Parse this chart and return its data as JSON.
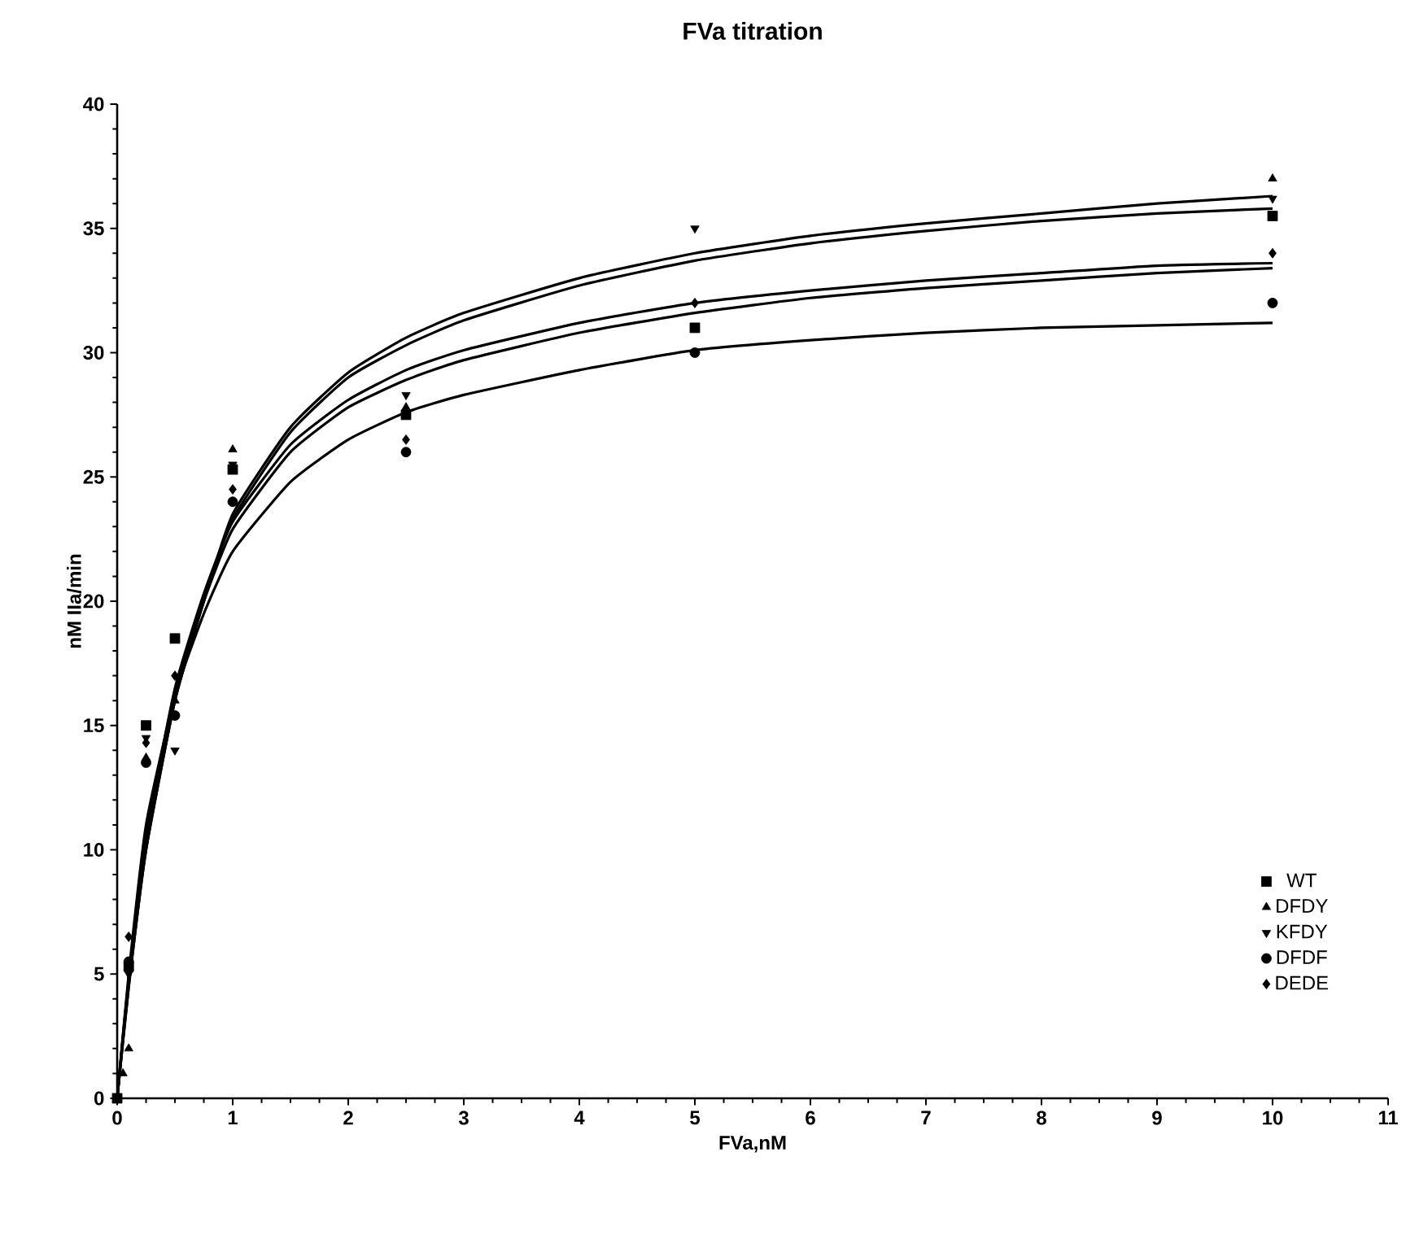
{
  "chart_data": {
    "type": "scatter",
    "title": "FVa titration",
    "xlabel": "FVa,nM",
    "ylabel": "nM IIa/min",
    "xlim": [
      0,
      11
    ],
    "ylim": [
      0,
      40
    ],
    "xticks": [
      0,
      1,
      2,
      3,
      4,
      5,
      6,
      7,
      8,
      9,
      10,
      11
    ],
    "yticks": [
      0,
      5,
      10,
      15,
      20,
      25,
      30,
      35,
      40
    ],
    "legend": "bottom right",
    "grid": false,
    "series": [
      {
        "name": "WT",
        "color": "#000000",
        "marker": "square",
        "x": [
          0,
          0.1,
          0.25,
          0.5,
          1,
          2.5,
          5,
          10
        ],
        "values": [
          0,
          5.3,
          15,
          18.5,
          25.3,
          27.5,
          31,
          35.5
        ]
      },
      {
        "name": "DFDY",
        "color": "#000000",
        "marker": "triangle",
        "x": [
          0.05,
          0.1,
          0.25,
          0.5,
          1,
          2.5,
          5,
          10
        ],
        "values": [
          1,
          2,
          13.7,
          16,
          26.1,
          27.8,
          null,
          37
        ]
      },
      {
        "name": "KFDY",
        "color": "#000000",
        "marker": "triangle-down",
        "x": [
          0.1,
          0.25,
          0.5,
          1,
          2.5,
          5,
          10
        ],
        "values": [
          5,
          14.5,
          14,
          25.5,
          28.3,
          35,
          36.2
        ]
      },
      {
        "name": "DFDF",
        "color": "#000000",
        "marker": "circle",
        "x": [
          0.1,
          0.25,
          0.5,
          1,
          2.5,
          5,
          10
        ],
        "values": [
          5.5,
          13.5,
          15.4,
          24,
          26,
          30,
          32
        ]
      },
      {
        "name": "DEDE",
        "color": "#000000",
        "marker": "diamond",
        "x": [
          0.1,
          0.25,
          0.5,
          1,
          2.5,
          5,
          10
        ],
        "values": [
          6.5,
          14.3,
          17,
          24.5,
          26.5,
          32,
          34
        ]
      },
      {
        "type": "line",
        "color": "#000000",
        "marker": "none",
        "x": [
          0,
          0.1,
          0.25,
          0.5,
          0.75,
          1,
          1.5,
          2,
          2.5,
          3,
          4,
          5,
          6,
          7,
          8,
          9,
          10
        ],
        "values": [
          0,
          4.5,
          10,
          16,
          20,
          23.5,
          27,
          29.2,
          30.6,
          31.6,
          33,
          34,
          34.7,
          35.2,
          35.6,
          36,
          36.3
        ]
      },
      {
        "type": "line",
        "color": "#000000",
        "marker": "none",
        "x": [
          0,
          0.1,
          0.25,
          0.5,
          0.75,
          1,
          1.5,
          2,
          2.5,
          3,
          4,
          5,
          6,
          7,
          8,
          9,
          10
        ],
        "values": [
          0,
          4.5,
          10,
          16,
          20,
          23.3,
          26.8,
          29,
          30.3,
          31.3,
          32.7,
          33.7,
          34.4,
          34.9,
          35.3,
          35.6,
          35.8
        ]
      },
      {
        "type": "line",
        "color": "#000000",
        "marker": "none",
        "x": [
          0,
          0.1,
          0.25,
          0.5,
          0.75,
          1,
          1.5,
          2,
          2.5,
          3,
          4,
          5,
          6,
          7,
          8,
          9,
          10
        ],
        "values": [
          0,
          4.8,
          10.5,
          16.5,
          20.3,
          23.2,
          26.3,
          28.1,
          29.3,
          30.1,
          31.2,
          32,
          32.5,
          32.9,
          33.2,
          33.5,
          33.6
        ]
      },
      {
        "type": "line",
        "color": "#000000",
        "marker": "none",
        "x": [
          0,
          0.1,
          0.25,
          0.5,
          0.75,
          1,
          1.5,
          2,
          2.5,
          3,
          4,
          5,
          6,
          7,
          8,
          9,
          10
        ],
        "values": [
          0,
          4.8,
          10.5,
          16.3,
          20,
          22.9,
          26,
          27.8,
          28.9,
          29.7,
          30.8,
          31.6,
          32.2,
          32.6,
          32.9,
          33.2,
          33.4
        ]
      },
      {
        "type": "line",
        "color": "#000000",
        "marker": "none",
        "x": [
          0,
          0.1,
          0.25,
          0.5,
          0.75,
          1,
          1.5,
          2,
          2.5,
          3,
          4,
          5,
          6,
          7,
          8,
          9,
          10
        ],
        "values": [
          0,
          5,
          11,
          16.2,
          19.5,
          22,
          24.8,
          26.5,
          27.6,
          28.3,
          29.3,
          30.1,
          30.5,
          30.8,
          31,
          31.1,
          31.2
        ]
      }
    ]
  }
}
